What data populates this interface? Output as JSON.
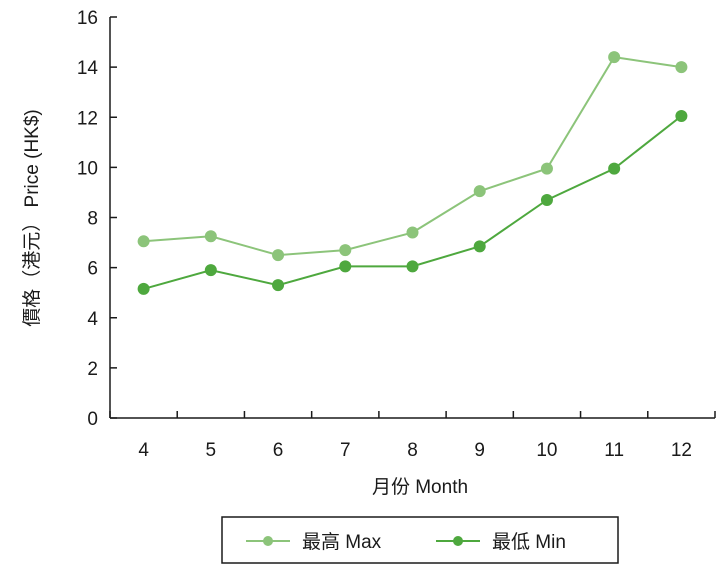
{
  "chart_data": {
    "type": "line",
    "title": "",
    "categories": [
      "4",
      "5",
      "6",
      "7",
      "8",
      "9",
      "10",
      "11",
      "12"
    ],
    "series": [
      {
        "name": "最高 Max",
        "color": "#8cc47a",
        "values": [
          7.05,
          7.25,
          6.5,
          6.7,
          7.4,
          9.05,
          9.95,
          14.4,
          14.0
        ]
      },
      {
        "name": "最低 Min",
        "color": "#4ea83e",
        "values": [
          5.15,
          5.9,
          5.3,
          6.05,
          6.05,
          6.85,
          8.7,
          9.95,
          12.05
        ]
      }
    ],
    "xlabel": "月份 Month",
    "ylabel": "價格（港元） Price (HK$)",
    "ylim": [
      0,
      16
    ],
    "yticks": [
      "0",
      "2",
      "4",
      "6",
      "8",
      "10",
      "12",
      "14",
      "16"
    ],
    "grid": false,
    "legend_position": "bottom"
  }
}
